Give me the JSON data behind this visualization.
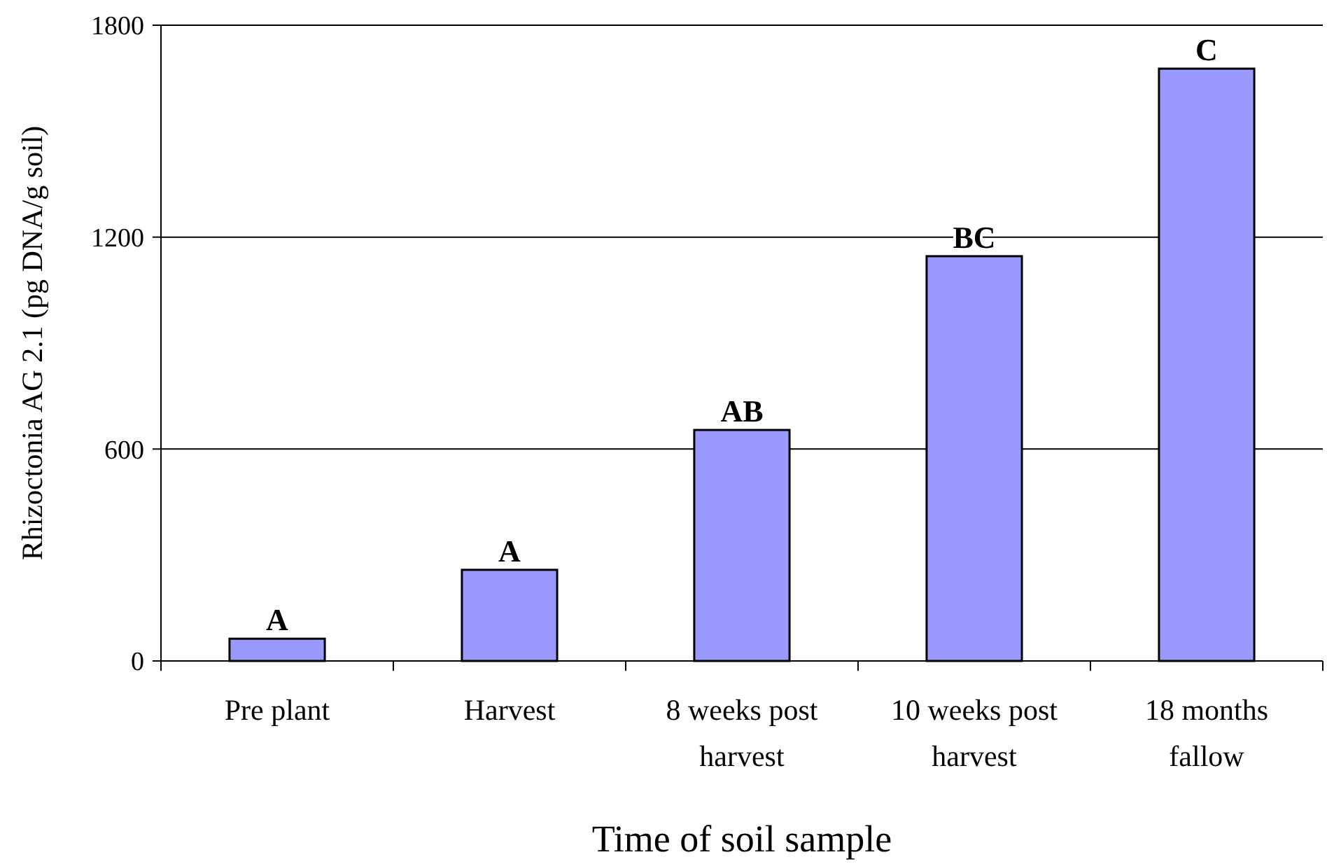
{
  "chart_data": {
    "type": "bar",
    "xlabel": "Time of soil sample",
    "ylabel": "Rhizoctonia AG 2.1 (pg DNA/g soil)",
    "categories": [
      "Pre plant",
      "Harvest",
      "8 weeks post harvest",
      "10 weeks post harvest",
      "18 months fallow"
    ],
    "values": [
      63,
      258,
      654,
      1146,
      1677
    ],
    "color": "#9999ff",
    "ylim": [
      0,
      1800
    ],
    "yticks": [
      0,
      600,
      1200,
      1800
    ],
    "grid": "y",
    "annotations": [
      {
        "text": "A",
        "x": "Pre plant",
        "y": 63
      },
      {
        "text": "A",
        "x": "Harvest",
        "y": 258
      },
      {
        "text": "AB",
        "x": "8 weeks post harvest",
        "y": 654
      },
      {
        "text": "BC",
        "x": "10 weeks post harvest",
        "y": 1146
      },
      {
        "text": "C",
        "x": "18 months fallow",
        "y": 1677
      }
    ]
  }
}
